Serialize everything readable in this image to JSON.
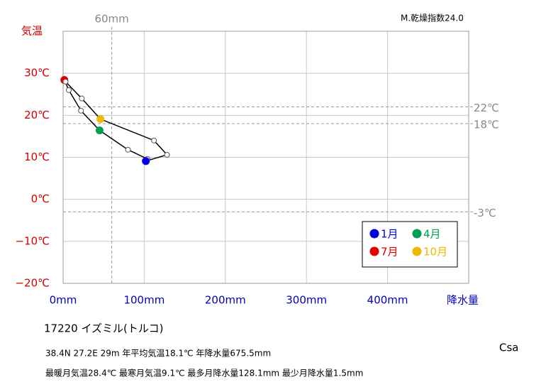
{
  "chart_data": {
    "type": "climograph",
    "dryness_index": "M.乾燥指数24.0",
    "station": "17220  イズミル(トルコ)",
    "info_line1": "38.4N  27.2E 29m  年平均気温18.1℃ 年降水量675.5mm",
    "info_line2": "最暖月気温28.4℃ 最寒月気温9.1℃ 最多月降水量128.1mm 最少月降水量1.5mm",
    "climate_class": "Csa",
    "y_label": "気温",
    "x_label": "降水量",
    "x": [
      104,
      80,
      45,
      22,
      7,
      1.5,
      3,
      23,
      46,
      112,
      128.1,
      102
    ],
    "values": [
      9.6,
      11.8,
      16.4,
      21.1,
      26.0,
      28.4,
      28.0,
      24.0,
      19.1,
      14.0,
      10.6,
      9.1
    ],
    "order_note_free": true,
    "marker_colors": [
      "#ffffff",
      "#ffffff",
      "#00a050",
      "#ffffff",
      "#ffffff",
      "#e00000",
      "#ffffff",
      "#ffffff",
      "#f0b800",
      "#ffffff",
      "#ffffff",
      "#0000e0"
    ],
    "line_color": "#000000",
    "closing_color": "#0030e0",
    "xlim": [
      0,
      500
    ],
    "ylim": [
      -20,
      40
    ],
    "xticks": [
      {
        "value": 0,
        "label": "0mm"
      },
      {
        "value": 100,
        "label": "100mm"
      },
      {
        "value": 200,
        "label": "200mm"
      },
      {
        "value": 300,
        "label": "300mm"
      },
      {
        "value": 400,
        "label": "400mm"
      },
      500
    ],
    "yticks": [
      {
        "value": -20,
        "label": "−20℃"
      },
      {
        "value": -10,
        "label": "−10℃"
      },
      {
        "value": 0,
        "label": "0℃"
      },
      {
        "value": 10,
        "label": "10℃"
      },
      {
        "value": 20,
        "label": "20℃"
      },
      {
        "value": 30,
        "label": "30℃"
      },
      40
    ],
    "grid": true,
    "h_reference_lines": [
      {
        "value": 22,
        "label": "22℃"
      },
      {
        "value": 18,
        "label": "18℃"
      },
      {
        "value": -3,
        "label": "-3℃"
      }
    ],
    "v_reference_lines": [
      {
        "value": 60,
        "label": "60mm"
      }
    ],
    "legend": [
      {
        "label": "1月",
        "color": "#0000e0"
      },
      {
        "label": "4月",
        "color": "#00a050"
      },
      {
        "label": "7月",
        "color": "#e00000"
      },
      {
        "label": "10月",
        "color": "#f0b800"
      }
    ]
  }
}
